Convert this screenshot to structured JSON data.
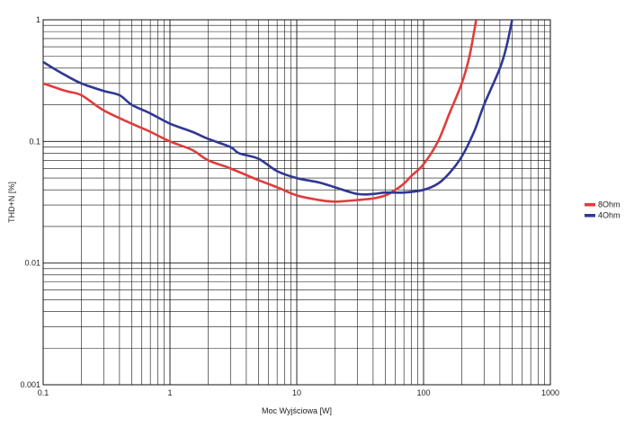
{
  "chart_data": {
    "type": "line",
    "title": "",
    "xlabel": "Moc Wyjściowa [W]",
    "ylabel": "THD+N [%]",
    "x_scale": "log",
    "y_scale": "log",
    "xlim": [
      0.1,
      1000
    ],
    "ylim": [
      0.001,
      1
    ],
    "grid": true,
    "legend_position": "right",
    "x_ticks": [
      "0.1",
      "1",
      "10",
      "100",
      "1000"
    ],
    "y_ticks": [
      "0.001",
      "0.01",
      "0.1",
      "1"
    ],
    "series": [
      {
        "name": "8Ohm",
        "color": "#e03c3c",
        "points": [
          [
            0.1,
            0.3
          ],
          [
            0.15,
            0.26
          ],
          [
            0.2,
            0.24
          ],
          [
            0.3,
            0.18
          ],
          [
            0.5,
            0.14
          ],
          [
            0.7,
            0.12
          ],
          [
            1,
            0.1
          ],
          [
            1.5,
            0.085
          ],
          [
            2,
            0.07
          ],
          [
            3,
            0.06
          ],
          [
            5,
            0.048
          ],
          [
            7,
            0.042
          ],
          [
            10,
            0.036
          ],
          [
            15,
            0.033
          ],
          [
            20,
            0.032
          ],
          [
            30,
            0.033
          ],
          [
            40,
            0.034
          ],
          [
            50,
            0.036
          ],
          [
            60,
            0.04
          ],
          [
            70,
            0.045
          ],
          [
            80,
            0.052
          ],
          [
            100,
            0.065
          ],
          [
            130,
            0.1
          ],
          [
            160,
            0.17
          ],
          [
            200,
            0.3
          ],
          [
            230,
            0.5
          ],
          [
            260,
            1.0
          ]
        ]
      },
      {
        "name": "4Ohm",
        "color": "#2f3893",
        "points": [
          [
            0.1,
            0.45
          ],
          [
            0.12,
            0.4
          ],
          [
            0.15,
            0.35
          ],
          [
            0.2,
            0.3
          ],
          [
            0.3,
            0.26
          ],
          [
            0.4,
            0.24
          ],
          [
            0.5,
            0.2
          ],
          [
            0.7,
            0.17
          ],
          [
            1,
            0.14
          ],
          [
            1.5,
            0.12
          ],
          [
            2,
            0.105
          ],
          [
            3,
            0.09
          ],
          [
            3.5,
            0.08
          ],
          [
            5,
            0.072
          ],
          [
            7,
            0.057
          ],
          [
            10,
            0.05
          ],
          [
            15,
            0.046
          ],
          [
            20,
            0.042
          ],
          [
            30,
            0.037
          ],
          [
            40,
            0.037
          ],
          [
            50,
            0.038
          ],
          [
            70,
            0.038
          ],
          [
            100,
            0.04
          ],
          [
            130,
            0.045
          ],
          [
            160,
            0.055
          ],
          [
            200,
            0.075
          ],
          [
            250,
            0.12
          ],
          [
            300,
            0.2
          ],
          [
            400,
            0.4
          ],
          [
            450,
            0.6
          ],
          [
            500,
            1.0
          ]
        ]
      }
    ]
  }
}
